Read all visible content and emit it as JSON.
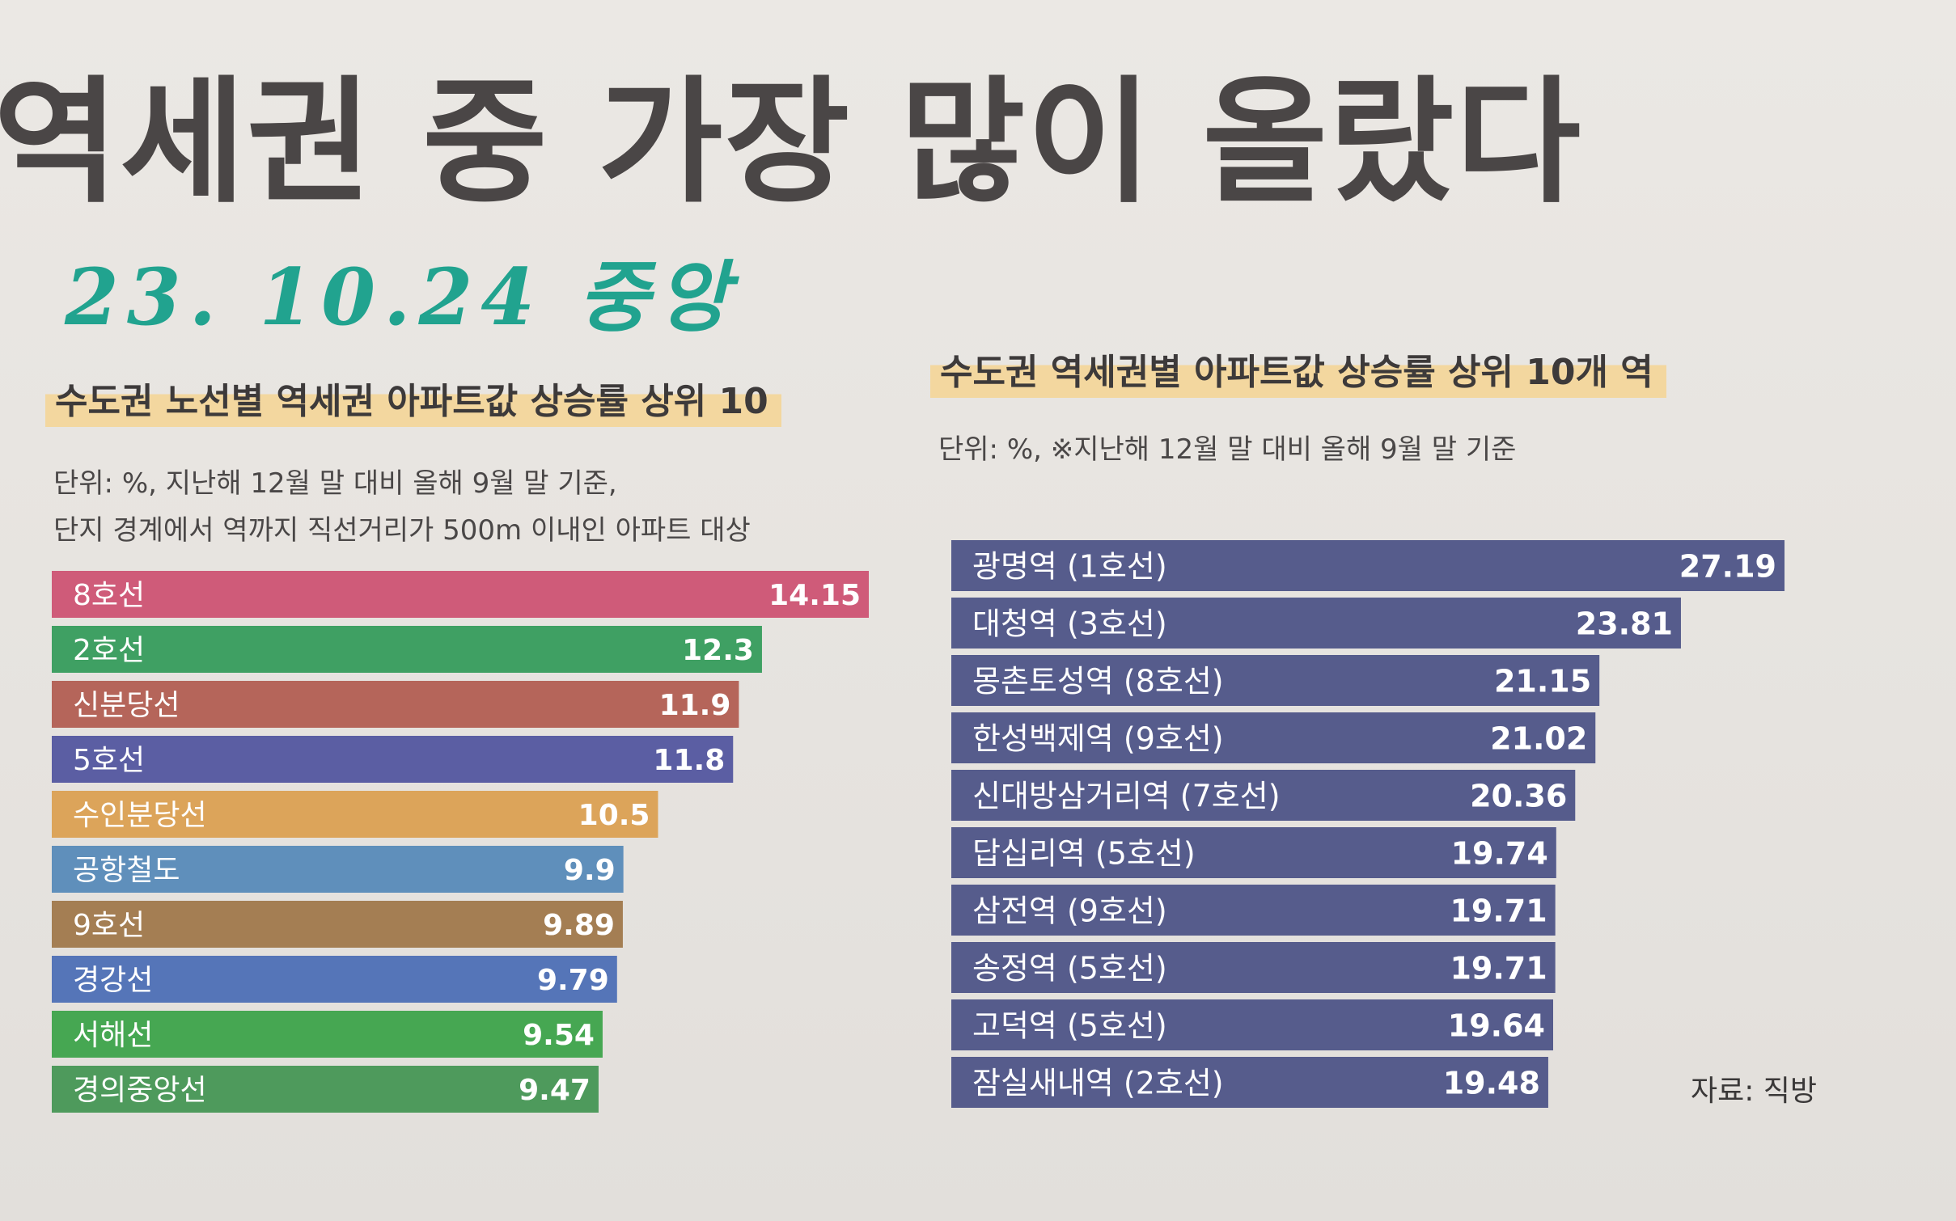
{
  "headline": "역세권 중 가장 많이 올랐다",
  "handwritten_note": "23. 10.24 중앙",
  "source": "자료: 직방",
  "chart_data": [
    {
      "type": "bar",
      "orientation": "horizontal",
      "title": "수도권 노선별 역세권 아파트값 상승률 상위 10",
      "notes": [
        "단위: %, 지난해 12월 말 대비 올해 9월 말 기준,",
        "단지 경계에서 역까지 직선거리가 500m 이내인 아파트 대상"
      ],
      "categories": [
        "8호선",
        "2호선",
        "신분당선",
        "5호선",
        "수인분당선",
        "공항철도",
        "9호선",
        "경강선",
        "서해선",
        "경의중앙선"
      ],
      "values": [
        14.15,
        12.3,
        11.9,
        11.8,
        10.5,
        9.9,
        9.89,
        9.79,
        9.54,
        9.47
      ],
      "value_labels": [
        "14.15",
        "12.3",
        "11.9",
        "11.8",
        "10.5",
        "9.9",
        "9.89",
        "9.79",
        "9.54",
        "9.47"
      ],
      "colors": [
        "#cf5b79",
        "#3fa063",
        "#b5655a",
        "#5b5ea3",
        "#dca45a",
        "#5f8fbb",
        "#a47e53",
        "#5575b8",
        "#46a752",
        "#4e9a5c"
      ],
      "xlim": [
        0,
        14.15
      ]
    },
    {
      "type": "bar",
      "orientation": "horizontal",
      "title": "수도권 역세권별 아파트값 상승률 상위 10개 역",
      "notes": [
        "단위: %, ※지난해 12월 말 대비 올해 9월 말 기준"
      ],
      "categories": [
        "광명역 (1호선)",
        "대청역 (3호선)",
        "몽촌토성역 (8호선)",
        "한성백제역 (9호선)",
        "신대방삼거리역 (7호선)",
        "답십리역 (5호선)",
        "삼전역 (9호선)",
        "송정역 (5호선)",
        "고덕역 (5호선)",
        "잠실새내역 (2호선)"
      ],
      "values": [
        27.19,
        23.81,
        21.15,
        21.02,
        20.36,
        19.74,
        19.71,
        19.71,
        19.64,
        19.48
      ],
      "value_labels": [
        "27.19",
        "23.81",
        "21.15",
        "21.02",
        "20.36",
        "19.74",
        "19.71",
        "19.71",
        "19.64",
        "19.48"
      ],
      "colors": [
        "#565c8c"
      ],
      "xlim": [
        0,
        27.19
      ]
    }
  ]
}
